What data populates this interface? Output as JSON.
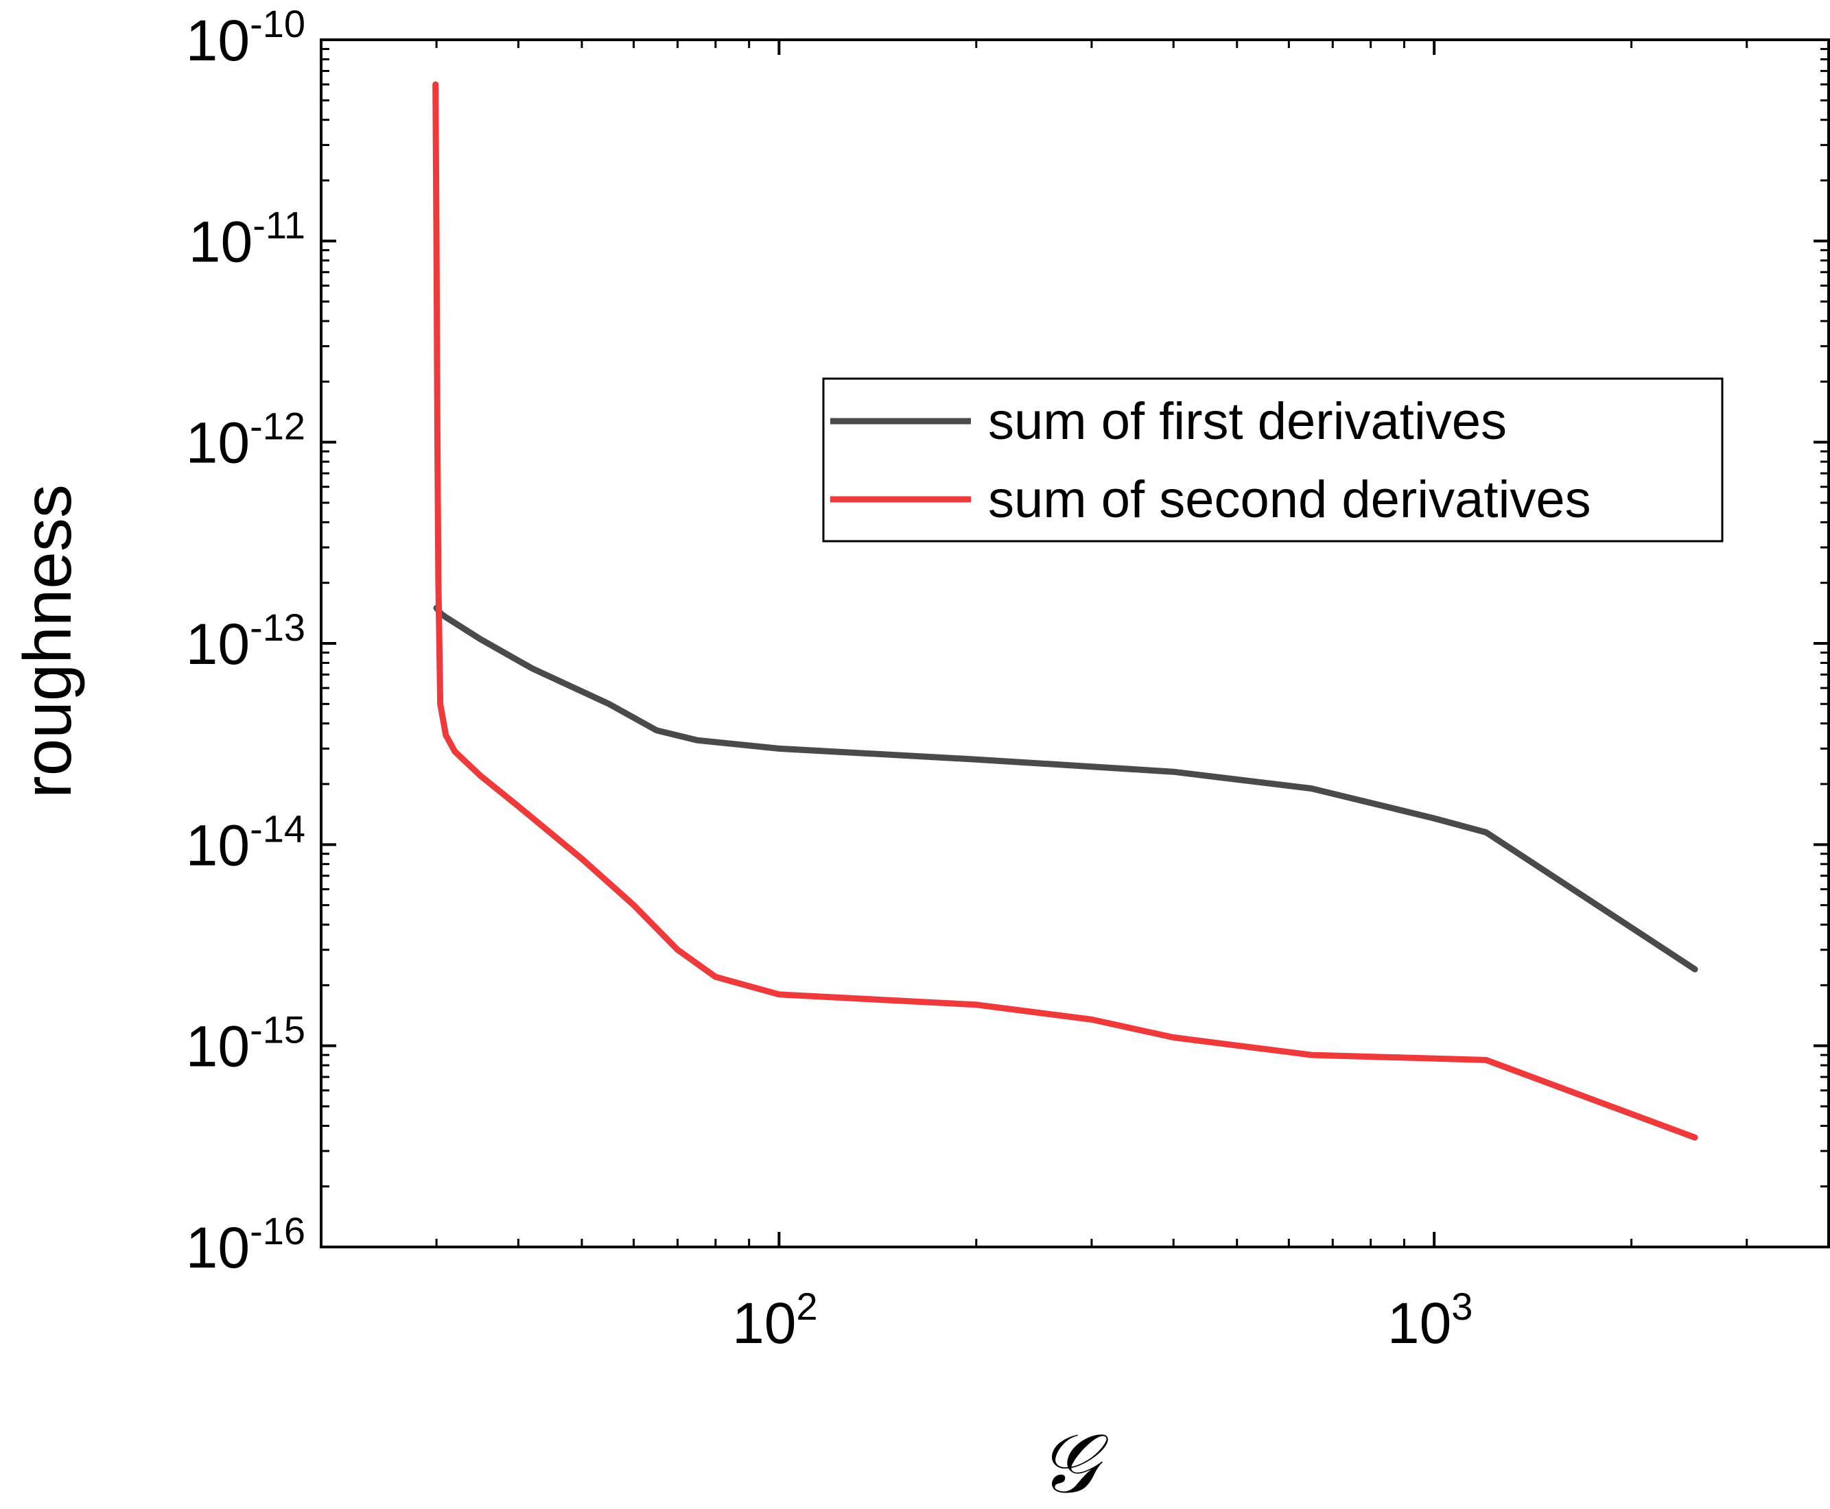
{
  "chart_data": {
    "type": "line",
    "xlabel": "𝒢",
    "ylabel": "roughness",
    "xscale": "log",
    "yscale": "log",
    "xlim": [
      20,
      4000
    ],
    "ylim": [
      1e-16,
      1e-10
    ],
    "x_ticks": [
      {
        "value": 100,
        "base": "10",
        "exp": "2"
      },
      {
        "value": 1000,
        "base": "10",
        "exp": "3"
      }
    ],
    "y_ticks": [
      {
        "value": 1e-16,
        "base": "10",
        "exp": "-16"
      },
      {
        "value": 1e-15,
        "base": "10",
        "exp": "-15"
      },
      {
        "value": 1e-14,
        "base": "10",
        "exp": "-14"
      },
      {
        "value": 1e-13,
        "base": "10",
        "exp": "-13"
      },
      {
        "value": 1e-12,
        "base": "10",
        "exp": "-12"
      },
      {
        "value": 1e-11,
        "base": "10",
        "exp": "-11"
      },
      {
        "value": 1e-10,
        "base": "10",
        "exp": "-10"
      }
    ],
    "grid": false,
    "legend_position": "upper-right",
    "series": [
      {
        "name": "sum of first derivatives",
        "color": "#4a4a4a",
        "points": [
          [
            30,
            1.5e-13
          ],
          [
            30.5,
            1.4e-13
          ],
          [
            31,
            1.35e-13
          ],
          [
            35,
            1.05e-13
          ],
          [
            42,
            7.5e-14
          ],
          [
            55,
            5e-14
          ],
          [
            65,
            3.7e-14
          ],
          [
            75,
            3.3e-14
          ],
          [
            100,
            3e-14
          ],
          [
            200,
            2.65e-14
          ],
          [
            400,
            2.3e-14
          ],
          [
            650,
            1.9e-14
          ],
          [
            1000,
            1.35e-14
          ],
          [
            1200,
            1.15e-14
          ],
          [
            2500,
            2.4e-15
          ]
        ]
      },
      {
        "name": "sum of second derivatives",
        "color": "#ee3a3a",
        "points": [
          [
            29.9,
            6e-11
          ],
          [
            30.0,
            1e-11
          ],
          [
            30.1,
            1e-12
          ],
          [
            30.2,
            2e-13
          ],
          [
            30.3,
            1e-13
          ],
          [
            30.4,
            5e-14
          ],
          [
            31,
            3.5e-14
          ],
          [
            32,
            2.9e-14
          ],
          [
            35,
            2.2e-14
          ],
          [
            40,
            1.55e-14
          ],
          [
            50,
            8.5e-15
          ],
          [
            60,
            5e-15
          ],
          [
            70,
            3e-15
          ],
          [
            80,
            2.2e-15
          ],
          [
            100,
            1.8e-15
          ],
          [
            200,
            1.6e-15
          ],
          [
            300,
            1.35e-15
          ],
          [
            400,
            1.1e-15
          ],
          [
            650,
            9e-16
          ],
          [
            1200,
            8.5e-16
          ],
          [
            2500,
            3.5e-16
          ]
        ]
      }
    ]
  }
}
